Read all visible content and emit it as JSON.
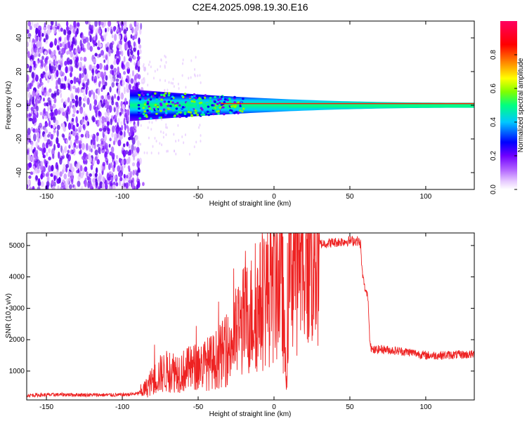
{
  "title": "C2E4.2025.098.19.30.E16",
  "chart_data": [
    {
      "type": "heatmap",
      "xlabel": "Height of straight line (km)",
      "ylabel": "Frequency (Hz)",
      "xlim": [
        -163,
        132
      ],
      "ylim": [
        -50,
        50
      ],
      "xticks": [
        -150,
        -100,
        -50,
        0,
        50,
        100
      ],
      "yticks": [
        -40,
        -20,
        0,
        20,
        40
      ],
      "grid": false,
      "description_regions": {
        "noise_band_x": [
          -163,
          -88
        ],
        "signal_center_freq_hz": 0,
        "signal_halfwidth_hz_start": 8,
        "signal_halfwidth_hz_end": 1.5
      },
      "colorbar": {
        "label": "Normalized spectral amplitude",
        "range": [
          0,
          1
        ],
        "ticks": [
          "0.0",
          "0.2",
          "0.4",
          "0.6",
          "0.8"
        ],
        "colors": [
          "#ffffff",
          "#e6c8ff",
          "#b060ff",
          "#7000ff",
          "#0000ff",
          "#00c8ff",
          "#00ff80",
          "#80ff00",
          "#ffff00",
          "#ff8000",
          "#ff0000",
          "#ff0060"
        ]
      }
    },
    {
      "type": "line",
      "xlabel": "Height of straight line (km)",
      "ylabel": "SNR (10 * v/v)",
      "xlim": [
        -163,
        132
      ],
      "ylim": [
        80,
        5400
      ],
      "xticks": [
        -150,
        -100,
        -50,
        0,
        50,
        100
      ],
      "yticks": [
        1000,
        2000,
        3000,
        4000,
        5000
      ],
      "color": "#ee2222",
      "series": [
        {
          "x": [
            -163,
            -140,
            -120,
            -100,
            -90,
            -85,
            -80,
            -75,
            -70,
            -60,
            -50,
            -40,
            -30,
            -25,
            -20,
            -10,
            -5,
            0,
            5,
            8,
            10,
            12,
            20,
            30,
            40,
            50,
            55,
            57,
            58,
            60,
            62,
            63,
            64,
            65,
            70,
            80,
            90,
            100,
            110,
            120,
            132
          ],
          "y": [
            230,
            250,
            240,
            240,
            280,
            420,
            700,
            900,
            1000,
            1000,
            1150,
            1300,
            1700,
            2200,
            2600,
            3000,
            3500,
            3800,
            4300,
            500,
            4700,
            4850,
            4900,
            5050,
            5100,
            5150,
            5150,
            5050,
            4200,
            3600,
            3350,
            2100,
            1750,
            1650,
            1700,
            1650,
            1600,
            1500,
            1500,
            1520,
            1530
          ]
        }
      ]
    }
  ]
}
